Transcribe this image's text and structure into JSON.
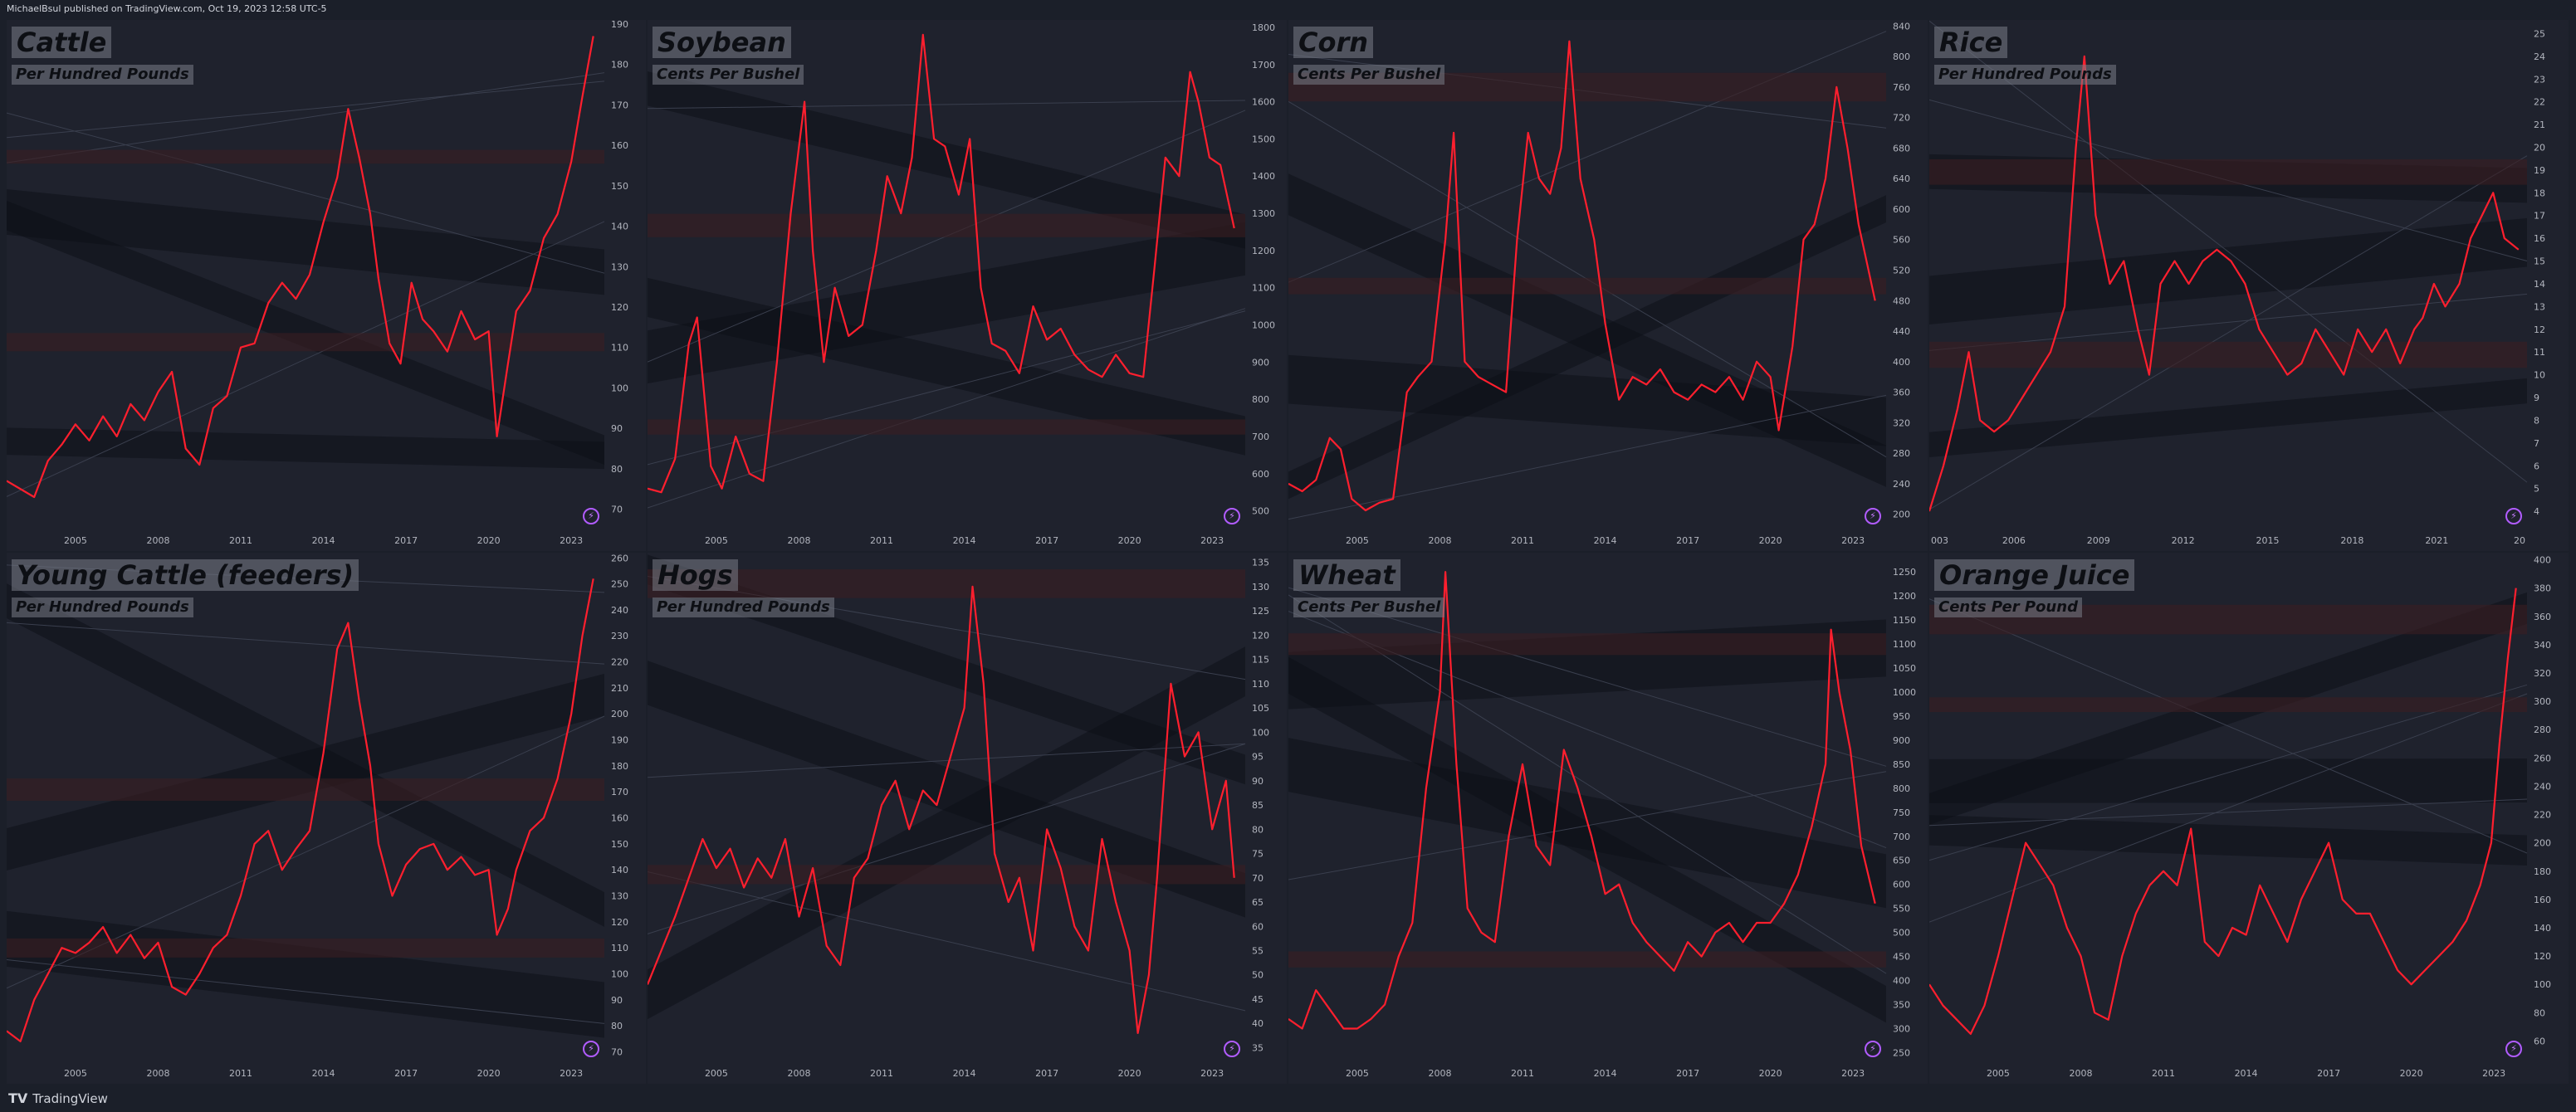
{
  "header": {
    "publisher_text": "MichaelBsul published on TradingView.com, Oct 19, 2023 12:58 UTC-5"
  },
  "footer": {
    "logo": "TV",
    "brand": "TradingView"
  },
  "colors": {
    "background": "#1f222d",
    "line": "#ff1f2e",
    "bands": "#0d1018",
    "zones": "#3a1e22",
    "text": "#b2b5be"
  },
  "chart_data": [
    {
      "type": "line",
      "title": "Cattle",
      "ylabel": "Per Hundred Pounds",
      "x_ticks": [
        "2005",
        "2008",
        "2011",
        "2014",
        "2017",
        "2020",
        "2023"
      ],
      "y_ticks": [
        70,
        80,
        90,
        100,
        110,
        120,
        130,
        140,
        150,
        160,
        170,
        180,
        190
      ],
      "ylim": [
        65,
        191
      ],
      "xlim": [
        2002.5,
        2024.2
      ],
      "series": [
        {
          "color": "#ff1f2e",
          "x": [
            2002.5,
            2003.5,
            2004.0,
            2004.5,
            2005.0,
            2005.5,
            2006.0,
            2006.5,
            2007.0,
            2007.5,
            2008.0,
            2008.5,
            2009.0,
            2009.5,
            2010.0,
            2010.5,
            2011.0,
            2011.5,
            2012.0,
            2012.5,
            2013.0,
            2013.5,
            2014.0,
            2014.5,
            2014.9,
            2015.3,
            2015.7,
            2016.0,
            2016.4,
            2016.8,
            2017.2,
            2017.6,
            2018.0,
            2018.5,
            2019.0,
            2019.5,
            2020.0,
            2020.3,
            2020.7,
            2021.0,
            2021.5,
            2022.0,
            2022.5,
            2023.0,
            2023.4,
            2023.8
          ],
          "y": [
            77,
            73,
            82,
            86,
            91,
            87,
            93,
            88,
            96,
            92,
            99,
            104,
            85,
            81,
            95,
            98,
            110,
            111,
            121,
            126,
            122,
            128,
            141,
            152,
            169,
            157,
            143,
            127,
            111,
            106,
            126,
            117,
            114,
            109,
            119,
            112,
            114,
            88,
            106,
            119,
            124,
            137,
            143,
            156,
            172,
            187
          ]
        }
      ]
    },
    {
      "type": "line",
      "title": "Soybean",
      "ylabel": "Cents Per Bushel",
      "x_ticks": [
        "2005",
        "2008",
        "2011",
        "2014",
        "2017",
        "2020",
        "2023"
      ],
      "y_ticks": [
        500,
        600,
        700,
        800,
        900,
        1000,
        1100,
        1200,
        1300,
        1400,
        1500,
        1600,
        1700,
        1800
      ],
      "ylim": [
        450,
        1820
      ],
      "xlim": [
        2002.5,
        2024.2
      ],
      "series": [
        {
          "color": "#ff1f2e",
          "x": [
            2002.5,
            2003.0,
            2003.5,
            2004.0,
            2004.3,
            2004.8,
            2005.2,
            2005.7,
            2006.2,
            2006.7,
            2007.2,
            2007.7,
            2008.2,
            2008.5,
            2008.9,
            2009.3,
            2009.8,
            2010.3,
            2010.8,
            2011.2,
            2011.7,
            2012.1,
            2012.5,
            2012.9,
            2013.3,
            2013.8,
            2014.2,
            2014.6,
            2015.0,
            2015.5,
            2016.0,
            2016.5,
            2017.0,
            2017.5,
            2018.0,
            2018.5,
            2019.0,
            2019.5,
            2020.0,
            2020.5,
            2020.9,
            2021.3,
            2021.8,
            2022.2,
            2022.5,
            2022.9,
            2023.3,
            2023.8
          ],
          "y": [
            560,
            550,
            640,
            950,
            1020,
            620,
            560,
            700,
            600,
            580,
            900,
            1300,
            1600,
            1200,
            900,
            1100,
            970,
            1000,
            1200,
            1400,
            1300,
            1450,
            1780,
            1500,
            1480,
            1350,
            1500,
            1100,
            950,
            930,
            870,
            1050,
            960,
            990,
            920,
            880,
            860,
            920,
            870,
            860,
            1150,
            1450,
            1400,
            1680,
            1600,
            1450,
            1430,
            1260
          ]
        }
      ]
    },
    {
      "type": "line",
      "title": "Corn",
      "ylabel": "Cents Per Bushel",
      "x_ticks": [
        "2005",
        "2008",
        "2011",
        "2014",
        "2017",
        "2020",
        "2023"
      ],
      "y_ticks": [
        200,
        240,
        280,
        320,
        360,
        400,
        440,
        480,
        520,
        560,
        600,
        640,
        680,
        720,
        760,
        800,
        840
      ],
      "ylim": [
        180,
        848
      ],
      "xlim": [
        2002.5,
        2024.2
      ],
      "series": [
        {
          "color": "#ff1f2e",
          "x": [
            2002.5,
            2003.0,
            2003.5,
            2004.0,
            2004.4,
            2004.8,
            2005.3,
            2005.8,
            2006.3,
            2006.8,
            2007.2,
            2007.7,
            2008.2,
            2008.5,
            2008.9,
            2009.4,
            2009.9,
            2010.4,
            2010.8,
            2011.2,
            2011.6,
            2012.0,
            2012.4,
            2012.7,
            2013.1,
            2013.6,
            2014.0,
            2014.5,
            2015.0,
            2015.5,
            2016.0,
            2016.5,
            2017.0,
            2017.5,
            2018.0,
            2018.5,
            2019.0,
            2019.5,
            2020.0,
            2020.3,
            2020.8,
            2021.2,
            2021.6,
            2022.0,
            2022.4,
            2022.8,
            2023.2,
            2023.8
          ],
          "y": [
            240,
            230,
            245,
            300,
            285,
            220,
            205,
            215,
            220,
            360,
            380,
            400,
            560,
            700,
            400,
            380,
            370,
            360,
            560,
            700,
            640,
            620,
            680,
            820,
            640,
            560,
            450,
            350,
            380,
            370,
            390,
            360,
            350,
            370,
            360,
            380,
            350,
            400,
            380,
            310,
            420,
            560,
            580,
            640,
            760,
            680,
            580,
            480
          ]
        }
      ]
    },
    {
      "type": "line",
      "title": "Rice",
      "ylabel": "Per Hundred Pounds",
      "x_ticks": [
        "003",
        "2006",
        "2009",
        "2012",
        "2015",
        "2018",
        "2021",
        "20"
      ],
      "y_ticks": [
        4,
        5,
        6,
        7,
        8,
        9,
        10,
        11,
        12,
        13,
        14,
        15,
        16,
        17,
        18,
        19,
        20,
        21,
        22,
        23,
        24,
        25
      ],
      "ylim": [
        3.2,
        25.6
      ],
      "xlim": [
        2003.0,
        2024.2
      ],
      "series": [
        {
          "color": "#ff1f2e",
          "x": [
            2003.0,
            2003.5,
            2004.0,
            2004.4,
            2004.8,
            2005.3,
            2005.8,
            2006.3,
            2006.8,
            2007.3,
            2007.8,
            2008.2,
            2008.5,
            2008.9,
            2009.4,
            2009.9,
            2010.4,
            2010.8,
            2011.2,
            2011.7,
            2012.2,
            2012.7,
            2013.2,
            2013.7,
            2014.2,
            2014.7,
            2015.2,
            2015.7,
            2016.2,
            2016.7,
            2017.2,
            2017.7,
            2018.2,
            2018.7,
            2019.2,
            2019.7,
            2020.2,
            2020.5,
            2020.9,
            2021.3,
            2021.8,
            2022.2,
            2022.6,
            2023.0,
            2023.4,
            2023.9
          ],
          "y": [
            4,
            6,
            8.5,
            11,
            8,
            7.5,
            8,
            9,
            10,
            11,
            13,
            20,
            24,
            17,
            14,
            15,
            12,
            10,
            14,
            15,
            14,
            15,
            15.5,
            15,
            14,
            12,
            11,
            10,
            10.5,
            12,
            11,
            10,
            12,
            11,
            12,
            10.5,
            12,
            12.5,
            14,
            13,
            14,
            16,
            17,
            18,
            16,
            15.5
          ]
        }
      ]
    },
    {
      "type": "line",
      "title": "Young Cattle (feeders)",
      "ylabel": "Per Hundred Pounds",
      "x_ticks": [
        "2005",
        "2008",
        "2011",
        "2014",
        "2017",
        "2020",
        "2023"
      ],
      "y_ticks": [
        70,
        80,
        90,
        100,
        110,
        120,
        130,
        140,
        150,
        160,
        170,
        180,
        190,
        200,
        210,
        220,
        230,
        240,
        250,
        260
      ],
      "ylim": [
        66,
        262
      ],
      "xlim": [
        2002.5,
        2024.2
      ],
      "series": [
        {
          "color": "#ff1f2e",
          "x": [
            2002.5,
            2003.0,
            2003.5,
            2004.0,
            2004.5,
            2005.0,
            2005.5,
            2006.0,
            2006.5,
            2007.0,
            2007.5,
            2008.0,
            2008.5,
            2009.0,
            2009.5,
            2010.0,
            2010.5,
            2011.0,
            2011.5,
            2012.0,
            2012.5,
            2013.0,
            2013.5,
            2014.0,
            2014.5,
            2014.9,
            2015.3,
            2015.7,
            2016.0,
            2016.5,
            2017.0,
            2017.5,
            2018.0,
            2018.5,
            2019.0,
            2019.5,
            2020.0,
            2020.3,
            2020.7,
            2021.0,
            2021.5,
            2022.0,
            2022.5,
            2023.0,
            2023.4,
            2023.8
          ],
          "y": [
            78,
            74,
            90,
            100,
            110,
            108,
            112,
            118,
            108,
            115,
            106,
            112,
            95,
            92,
            100,
            110,
            115,
            130,
            150,
            155,
            140,
            148,
            155,
            185,
            225,
            235,
            205,
            180,
            150,
            130,
            142,
            148,
            150,
            140,
            145,
            138,
            140,
            115,
            125,
            140,
            155,
            160,
            175,
            200,
            230,
            252
          ]
        }
      ]
    },
    {
      "type": "line",
      "title": "Hogs",
      "ylabel": "Per Hundred Pounds",
      "x_ticks": [
        "2005",
        "2008",
        "2011",
        "2014",
        "2017",
        "2020",
        "2023"
      ],
      "y_ticks": [
        35,
        40,
        45,
        50,
        55,
        60,
        65,
        70,
        75,
        80,
        85,
        90,
        95,
        100,
        105,
        110,
        115,
        120,
        125,
        130,
        135
      ],
      "ylim": [
        32,
        137
      ],
      "xlim": [
        2002.5,
        2024.2
      ],
      "series": [
        {
          "color": "#ff1f2e",
          "x": [
            2002.5,
            2003.0,
            2003.5,
            2004.0,
            2004.5,
            2005.0,
            2005.5,
            2006.0,
            2006.5,
            2007.0,
            2007.5,
            2008.0,
            2008.5,
            2009.0,
            2009.5,
            2010.0,
            2010.5,
            2011.0,
            2011.5,
            2012.0,
            2012.5,
            2013.0,
            2013.5,
            2014.0,
            2014.3,
            2014.7,
            2015.1,
            2015.6,
            2016.0,
            2016.5,
            2017.0,
            2017.5,
            2018.0,
            2018.5,
            2019.0,
            2019.5,
            2020.0,
            2020.3,
            2020.7,
            2021.0,
            2021.5,
            2022.0,
            2022.5,
            2023.0,
            2023.5,
            2023.8
          ],
          "y": [
            48,
            55,
            62,
            70,
            78,
            72,
            76,
            68,
            74,
            70,
            78,
            62,
            72,
            56,
            52,
            70,
            74,
            85,
            90,
            80,
            88,
            85,
            95,
            105,
            130,
            110,
            75,
            65,
            70,
            55,
            80,
            72,
            60,
            55,
            78,
            65,
            55,
            38,
            50,
            70,
            110,
            95,
            100,
            80,
            90,
            70
          ]
        }
      ]
    },
    {
      "type": "line",
      "title": "Wheat",
      "ylabel": "Cents Per Bushel",
      "x_ticks": [
        "2005",
        "2008",
        "2011",
        "2014",
        "2017",
        "2020",
        "2023"
      ],
      "y_ticks": [
        250,
        300,
        350,
        400,
        450,
        500,
        550,
        600,
        650,
        700,
        750,
        800,
        850,
        900,
        950,
        1000,
        1050,
        1100,
        1150,
        1200,
        1250
      ],
      "ylim": [
        230,
        1290
      ],
      "xlim": [
        2002.5,
        2024.2
      ],
      "series": [
        {
          "color": "#ff1f2e",
          "x": [
            2002.5,
            2003.0,
            2003.5,
            2004.0,
            2004.5,
            2005.0,
            2005.5,
            2006.0,
            2006.5,
            2007.0,
            2007.5,
            2008.0,
            2008.2,
            2008.6,
            2009.0,
            2009.5,
            2010.0,
            2010.5,
            2011.0,
            2011.5,
            2012.0,
            2012.5,
            2013.0,
            2013.5,
            2014.0,
            2014.5,
            2015.0,
            2015.5,
            2016.0,
            2016.5,
            2017.0,
            2017.5,
            2018.0,
            2018.5,
            2019.0,
            2019.5,
            2020.0,
            2020.5,
            2021.0,
            2021.5,
            2022.0,
            2022.2,
            2022.5,
            2022.9,
            2023.3,
            2023.8
          ],
          "y": [
            320,
            300,
            380,
            340,
            300,
            300,
            320,
            350,
            450,
            520,
            800,
            1000,
            1250,
            850,
            550,
            500,
            480,
            700,
            850,
            680,
            640,
            880,
            800,
            700,
            580,
            600,
            520,
            480,
            450,
            420,
            480,
            450,
            500,
            520,
            480,
            520,
            520,
            560,
            620,
            720,
            850,
            1130,
            1000,
            880,
            680,
            560
          ]
        }
      ]
    },
    {
      "type": "line",
      "title": "Orange Juice",
      "ylabel": "Cents Per Pound",
      "x_ticks": [
        "2005",
        "2008",
        "2011",
        "2014",
        "2017",
        "2020",
        "2023"
      ],
      "y_ticks": [
        60,
        80,
        100,
        120,
        140,
        160,
        180,
        200,
        220,
        240,
        260,
        280,
        300,
        320,
        340,
        360,
        380,
        400
      ],
      "ylim": [
        45,
        405
      ],
      "xlim": [
        2002.5,
        2024.2
      ],
      "series": [
        {
          "color": "#ff1f2e",
          "x": [
            2002.5,
            2003.0,
            2003.5,
            2004.0,
            2004.5,
            2005.0,
            2005.5,
            2006.0,
            2006.5,
            2007.0,
            2007.5,
            2008.0,
            2008.5,
            2009.0,
            2009.5,
            2010.0,
            2010.5,
            2011.0,
            2011.5,
            2012.0,
            2012.5,
            2013.0,
            2013.5,
            2014.0,
            2014.5,
            2015.0,
            2015.5,
            2016.0,
            2016.5,
            2017.0,
            2017.5,
            2018.0,
            2018.5,
            2019.0,
            2019.5,
            2020.0,
            2020.5,
            2021.0,
            2021.5,
            2022.0,
            2022.5,
            2022.9,
            2023.2,
            2023.5,
            2023.8
          ],
          "y": [
            100,
            85,
            75,
            65,
            85,
            120,
            160,
            200,
            185,
            170,
            140,
            120,
            80,
            75,
            120,
            150,
            170,
            180,
            170,
            210,
            130,
            120,
            140,
            135,
            170,
            150,
            130,
            160,
            180,
            200,
            160,
            150,
            150,
            130,
            110,
            100,
            110,
            120,
            130,
            145,
            170,
            200,
            270,
            330,
            380
          ]
        }
      ]
    }
  ]
}
